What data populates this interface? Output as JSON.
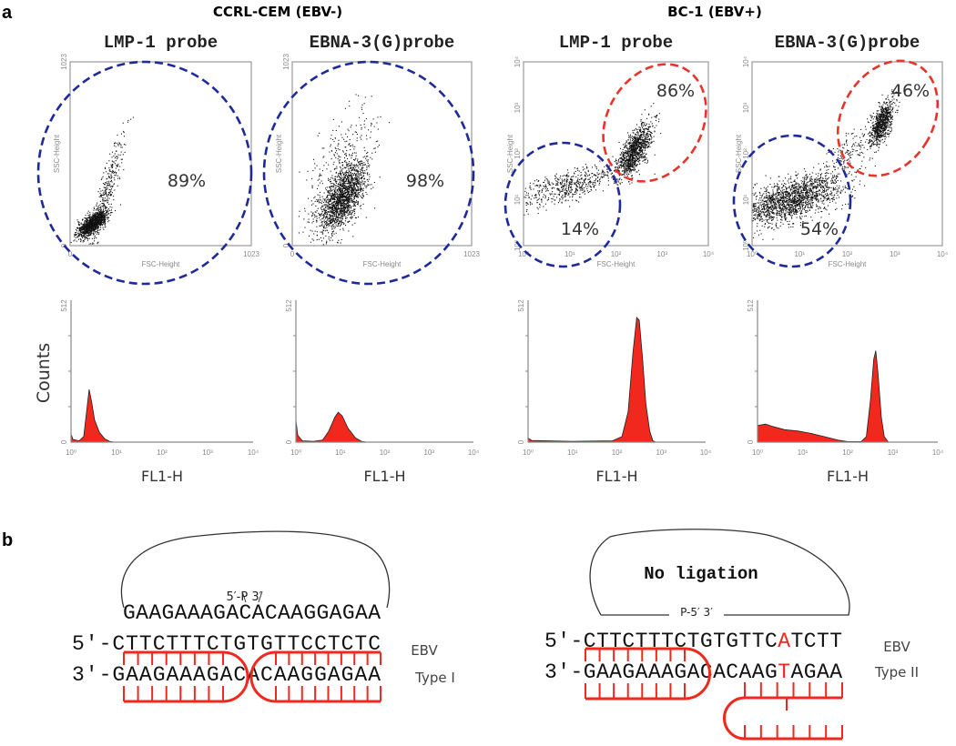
{
  "panel_labels": {
    "a": "a",
    "b": "b"
  },
  "groups": [
    "CCRL-CEM (EBV-)",
    "BC-1 (EBV+)"
  ],
  "chart_data": [
    {
      "type": "scatter",
      "title": "LMP-1 probe",
      "group": "CCRL-CEM (EBV-)",
      "xlabel": "FSC-Height",
      "ylabel": "SSC-Height",
      "xscale": "linear",
      "xlim": [
        0,
        1023
      ],
      "ylim": [
        0,
        1023
      ],
      "xticks": [
        "0",
        "1023"
      ],
      "yticks": [
        "0",
        "1023"
      ],
      "gates": [
        {
          "color": "#1f2a9a",
          "percent": "89%"
        }
      ]
    },
    {
      "type": "scatter",
      "title": "EBNA-3(G)probe",
      "group": "CCRL-CEM (EBV-)",
      "xlabel": "FSC-Height",
      "ylabel": "SSC-Height",
      "xscale": "linear",
      "xlim": [
        0,
        1023
      ],
      "ylim": [
        0,
        1023
      ],
      "xticks": [
        "0",
        "1023"
      ],
      "yticks": [
        "0",
        "1023"
      ],
      "gates": [
        {
          "color": "#1f2a9a",
          "percent": "98%"
        }
      ]
    },
    {
      "type": "scatter",
      "title": "LMP-1 probe",
      "group": "BC-1 (EBV+)",
      "xlabel": "FSC-Height",
      "ylabel": "SSC-Height",
      "xscale": "log",
      "xlim": [
        1,
        10000
      ],
      "ylim": [
        1,
        10000
      ],
      "xticks": [
        "10⁰",
        "10¹",
        "10²",
        "10³",
        "10⁴"
      ],
      "yticks": [
        "10⁰",
        "10¹",
        "10²",
        "10³",
        "10⁴"
      ],
      "gates": [
        {
          "color": "#1f2a9a",
          "percent": "14%"
        },
        {
          "color": "#e8332a",
          "percent": "86%"
        }
      ]
    },
    {
      "type": "scatter",
      "title": "EBNA-3(G)probe",
      "group": "BC-1 (EBV+)",
      "xlabel": "FSC-Height",
      "ylabel": "SSC-Height",
      "xscale": "log",
      "xlim": [
        1,
        10000
      ],
      "ylim": [
        1,
        10000
      ],
      "xticks": [
        "10⁰",
        "10¹",
        "10²",
        "10³",
        "10⁴"
      ],
      "yticks": [
        "10⁰",
        "10¹",
        "10²",
        "10³",
        "10⁴"
      ],
      "gates": [
        {
          "color": "#1f2a9a",
          "percent": "54%"
        },
        {
          "color": "#e8332a",
          "percent": "46%"
        }
      ]
    },
    {
      "type": "area",
      "xlabel": "FL1-H",
      "ylabel": "Counts",
      "xscale": "log",
      "xlim": [
        1,
        10000
      ],
      "ylim": [
        0,
        512
      ],
      "xticks": [
        "10⁰",
        "10¹",
        "10²",
        "10³",
        "10⁴"
      ],
      "yticks": [
        "0",
        "512"
      ],
      "color": "#f0281e",
      "points": [
        [
          1,
          30
        ],
        [
          1.1,
          10
        ],
        [
          1.5,
          5
        ],
        [
          1.9,
          20
        ],
        [
          2.2,
          110
        ],
        [
          2.5,
          190
        ],
        [
          2.8,
          150
        ],
        [
          3.3,
          80
        ],
        [
          4.2,
          35
        ],
        [
          5.5,
          12
        ],
        [
          7,
          3
        ],
        [
          9,
          0
        ],
        [
          10000,
          0
        ]
      ]
    },
    {
      "type": "area",
      "xlabel": "FL1-H",
      "ylabel": "Counts",
      "xticks": [
        "10⁰",
        "10¹",
        "10²",
        "10³",
        "10⁴"
      ],
      "yticks": [
        "0",
        "512"
      ],
      "xscale": "log",
      "xlim": [
        1,
        10000
      ],
      "ylim": [
        0,
        512
      ],
      "color": "#f0281e",
      "points": [
        [
          1,
          80
        ],
        [
          1.1,
          25
        ],
        [
          1.4,
          5
        ],
        [
          2.5,
          3
        ],
        [
          4,
          8
        ],
        [
          5.5,
          40
        ],
        [
          7.5,
          90
        ],
        [
          9,
          108
        ],
        [
          11,
          95
        ],
        [
          15,
          50
        ],
        [
          22,
          15
        ],
        [
          30,
          3
        ],
        [
          40,
          0
        ],
        [
          10000,
          0
        ]
      ]
    },
    {
      "type": "area",
      "xlabel": "FL1-H",
      "ylabel": "Counts",
      "xticks": [
        "10⁰",
        "10¹",
        "10²",
        "10³",
        "10⁴"
      ],
      "yticks": [
        "0",
        "512"
      ],
      "xscale": "log",
      "xlim": [
        1,
        10000
      ],
      "ylim": [
        0,
        512
      ],
      "color": "#f0281e",
      "points": [
        [
          1,
          15
        ],
        [
          1.2,
          6
        ],
        [
          10,
          3
        ],
        [
          80,
          5
        ],
        [
          130,
          20
        ],
        [
          180,
          110
        ],
        [
          230,
          320
        ],
        [
          280,
          450
        ],
        [
          320,
          440
        ],
        [
          380,
          300
        ],
        [
          450,
          140
        ],
        [
          550,
          40
        ],
        [
          650,
          5
        ],
        [
          750,
          0
        ],
        [
          10000,
          0
        ]
      ]
    },
    {
      "type": "area",
      "xlabel": "FL1-H",
      "ylabel": "Counts",
      "xticks": [
        "10⁰",
        "10¹",
        "10²",
        "10³",
        "10⁴"
      ],
      "yticks": [
        "0",
        "512"
      ],
      "xscale": "log",
      "xlim": [
        1,
        10000
      ],
      "ylim": [
        0,
        512
      ],
      "color": "#f0281e",
      "points": [
        [
          1,
          60
        ],
        [
          1.5,
          65
        ],
        [
          2,
          58
        ],
        [
          4,
          45
        ],
        [
          8,
          40
        ],
        [
          15,
          32
        ],
        [
          30,
          20
        ],
        [
          60,
          8
        ],
        [
          100,
          2
        ],
        [
          200,
          2
        ],
        [
          260,
          20
        ],
        [
          320,
          150
        ],
        [
          380,
          300
        ],
        [
          420,
          330
        ],
        [
          470,
          250
        ],
        [
          560,
          90
        ],
        [
          650,
          20
        ],
        [
          800,
          0
        ],
        [
          10000,
          0
        ]
      ]
    }
  ],
  "histogram_ylabel": "Counts",
  "diagram": {
    "left": {
      "ligation_ends": "5′-P  3′",
      "probe_strand": "GAAGAAAGACACAAGGAGAA",
      "strand5": [
        "5′-CTTCTTTCTGTGTTCCTCTC"
      ],
      "strand3": [
        "3′-GAAGAAAGACACAAGGAGAA"
      ],
      "label1": "EBV",
      "label2": "Type I"
    },
    "right": {
      "loop_text": "No ligation",
      "ligation_ends": "P-5′ 3′",
      "strand5": [
        "5′-CTTCTTTCTGTGTTC",
        "A",
        "TCTT"
      ],
      "strand3": [
        "3′-GAAGAAAGACACAAG",
        "T",
        "AGAA"
      ],
      "label1": "EBV",
      "label2": "Type II"
    },
    "mismatch_color": "#f0281e"
  }
}
